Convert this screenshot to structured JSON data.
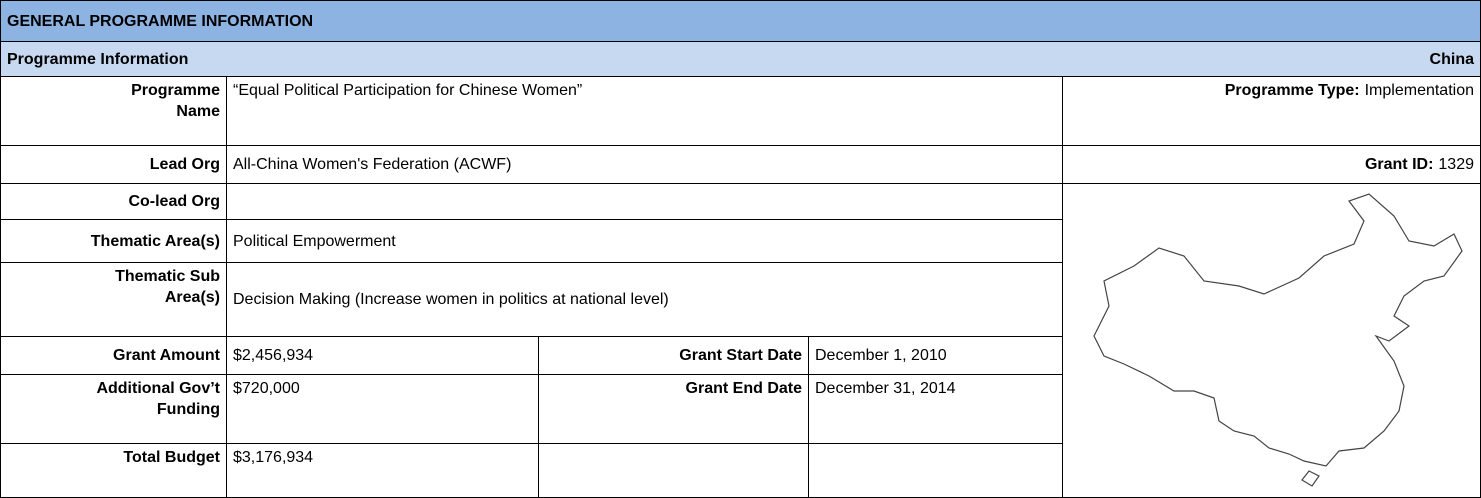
{
  "header": {
    "title": "GENERAL PROGRAMME INFORMATION",
    "section": "Programme Information",
    "country": "China"
  },
  "fields": [
    {
      "label": "Programme Name",
      "value": "“Equal Political Participation for Chinese Women”"
    },
    {
      "label": "Lead Org",
      "value": "All-China Women's Federation (ACWF)"
    },
    {
      "label": "Co-lead Org"
    },
    {
      "label": "Thematic Area(s)",
      "value": "Political Empowerment"
    },
    {
      "label": "Thematic Sub Area(s)",
      "value": "Decision Making (Increase women in politics at national level)"
    },
    {
      "label": "Grant Amount",
      "value": "$2,456,934"
    },
    {
      "label": "Additional Gov’t Funding",
      "value": "$720,000"
    },
    {
      "label": "Total Budget",
      "value": "$3,176,934"
    }
  ],
  "dates": [
    {
      "label": "Grant Start Date",
      "value": "December 1, 2010"
    },
    {
      "label": "Grant End Date",
      "value": "December 31, 2014"
    }
  ],
  "programme_type": {
    "label": "Programme Type:",
    "value": "Implementation"
  },
  "grant_id": {
    "label": "Grant ID:",
    "value": "1329"
  }
}
